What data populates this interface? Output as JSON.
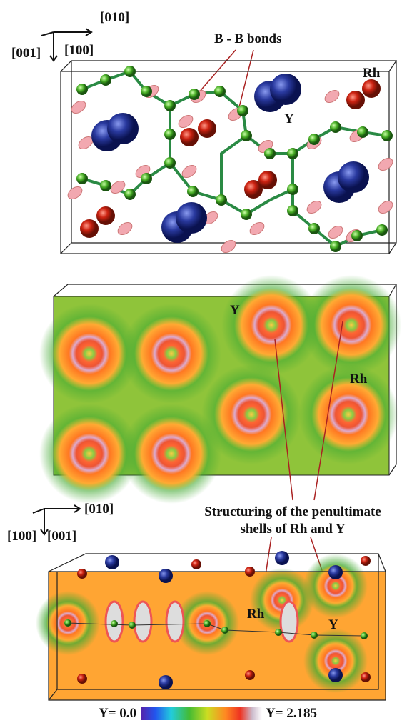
{
  "top_panel": {
    "axis_a": "[010]",
    "axis_b": "[001]",
    "axis_c": "[100]",
    "bonds_label": "B - B bonds",
    "rh_label": "Rh",
    "y_label": "Y"
  },
  "middle_panel": {
    "y_label": "Y",
    "rh_label": "Rh"
  },
  "annotation": {
    "line1": "Structuring of the penultimate",
    "line2": "shells of Rh and Y"
  },
  "bottom_panel": {
    "axis_a": "[010]",
    "axis_b": "[100]",
    "axis_c": "[001]",
    "rh_label": "Rh",
    "y_label": "Y"
  },
  "colorbar": {
    "min_label": "Υ= 0.0",
    "max_label": "Υ= 2.185"
  }
}
